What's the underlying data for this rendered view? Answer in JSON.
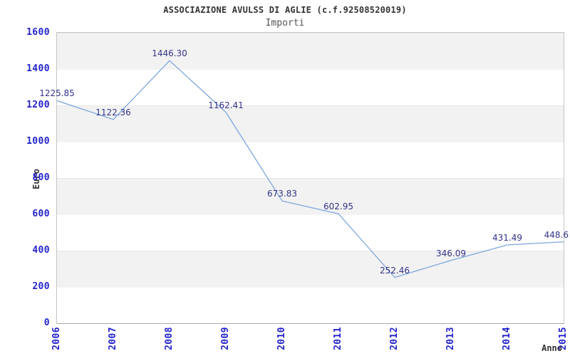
{
  "header": {
    "title": "ASSOCIAZIONE AVULSS DI AGLIE (c.f.92508520019)",
    "subtitle": "Importi"
  },
  "chart_data": {
    "type": "line",
    "title": "ASSOCIAZIONE AVULSS DI AGLIE (c.f.92508520019)",
    "subtitle": "Importi",
    "xlabel": "Anno",
    "ylabel": "Euro",
    "categories": [
      "2006",
      "2007",
      "2008",
      "2009",
      "2010",
      "2011",
      "2012",
      "2013",
      "2014",
      "2015"
    ],
    "series": [
      {
        "name": "Importi",
        "values": [
          1225.85,
          1122.36,
          1446.3,
          1162.41,
          673.83,
          602.95,
          252.46,
          346.09,
          431.49,
          448.6
        ]
      }
    ],
    "point_labels": [
      "1225.85",
      "1122.36",
      "1446.30",
      "1162.41",
      "673.83",
      "602.95",
      "252.46",
      "346.09",
      "431.49",
      "448.6"
    ],
    "ylim": [
      0,
      1600
    ],
    "yticks": [
      0,
      200,
      400,
      600,
      800,
      1000,
      1200,
      1400,
      1600
    ],
    "grid": "alternating-horizontal-bands",
    "legend_position": "none",
    "colors": {
      "line": "#7da7dc",
      "tick_label": "#2323cc",
      "point_label": "#333388",
      "band_gray": "#f2f2f2",
      "band_white": "#ffffff",
      "plot_border": "#c5c5c5",
      "title": "#333333",
      "subtitle": "#555555",
      "axis_title": "#333333"
    }
  }
}
